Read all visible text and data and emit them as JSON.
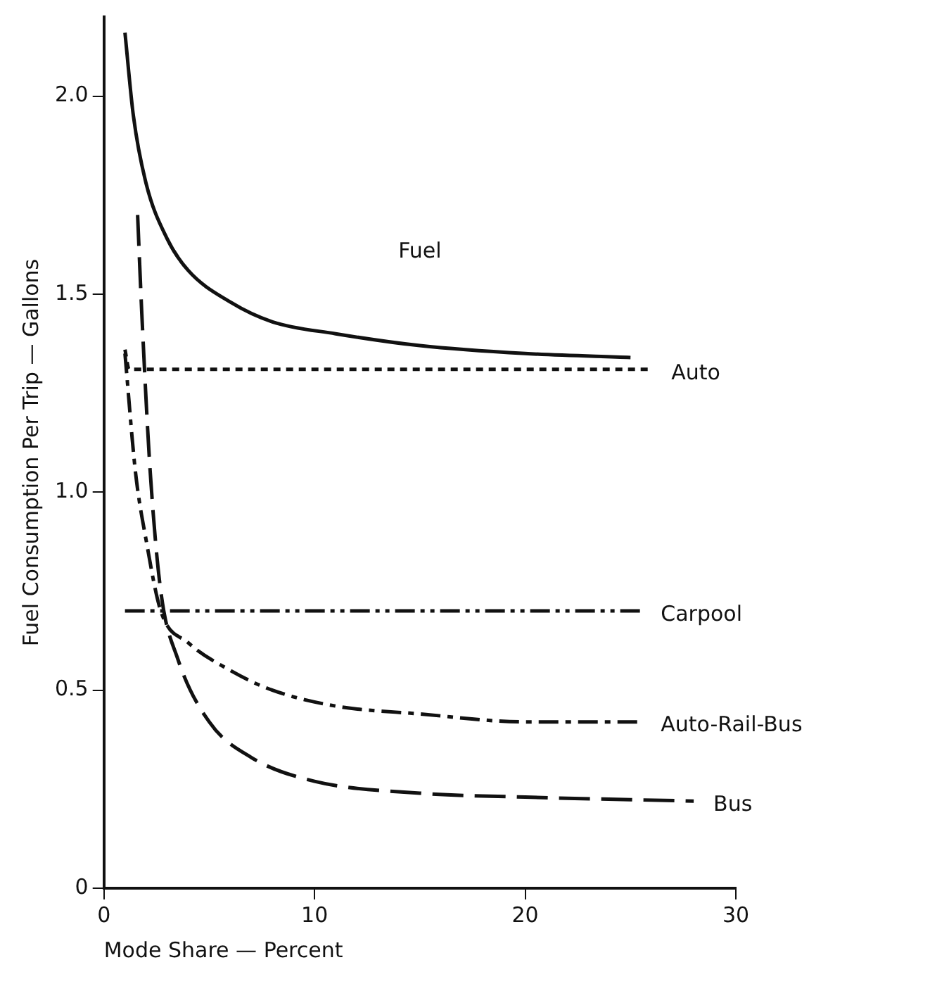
{
  "chart_data": {
    "type": "line",
    "title": "Fuel",
    "xlabel": "Mode Share — Percent",
    "ylabel": "Fuel Consumption Per Trip — Gallons",
    "xlim": [
      0,
      30
    ],
    "xticks": [
      0,
      10,
      20,
      30
    ],
    "ylim": [
      0,
      2.2
    ],
    "yticks": [
      0,
      {
        "value": 0.5,
        "label": "0.5"
      },
      {
        "value": 1,
        "label": "1.0"
      },
      {
        "value": 1.5,
        "label": "1.5"
      },
      {
        "value": 2,
        "label": "2.0"
      }
    ],
    "grid": false,
    "legend": false,
    "marker": "none",
    "series": [
      {
        "color": "#111111",
        "line_style": "solid",
        "x": [
          1.0,
          1.4,
          2,
          3,
          4,
          6,
          8,
          11,
          15,
          20,
          25
        ],
        "values": [
          2.16,
          1.95,
          1.78,
          1.64,
          1.56,
          1.48,
          1.43,
          1.4,
          1.37,
          1.35,
          1.34
        ]
      },
      {
        "name": "Auto",
        "color": "#111111",
        "line_style": "dotted",
        "x": [
          1.0,
          1.2,
          26
        ],
        "values": [
          1.36,
          1.31,
          1.31
        ]
      },
      {
        "name": "Carpool",
        "color": "#111111",
        "line_style": "dashdotdot",
        "x": [
          1.0,
          25.5
        ],
        "values": [
          0.7,
          0.7
        ]
      },
      {
        "name": "Auto-Rail-Bus",
        "color": "#111111",
        "line_style": "dashdot",
        "x": [
          1.0,
          1.5,
          2,
          2.7,
          4,
          6,
          8,
          11,
          15,
          20,
          25.5
        ],
        "values": [
          1.35,
          1.05,
          0.88,
          0.7,
          0.62,
          0.55,
          0.5,
          0.46,
          0.44,
          0.42,
          0.42
        ]
      },
      {
        "name": "Bus",
        "color": "#111111",
        "line_style": "dashed",
        "x": [
          1.6,
          1.8,
          2.2,
          2.7,
          3.5,
          5,
          7,
          10,
          15,
          20,
          28
        ],
        "values": [
          1.7,
          1.45,
          1.05,
          0.75,
          0.58,
          0.42,
          0.33,
          0.27,
          0.24,
          0.23,
          0.22
        ]
      }
    ]
  }
}
